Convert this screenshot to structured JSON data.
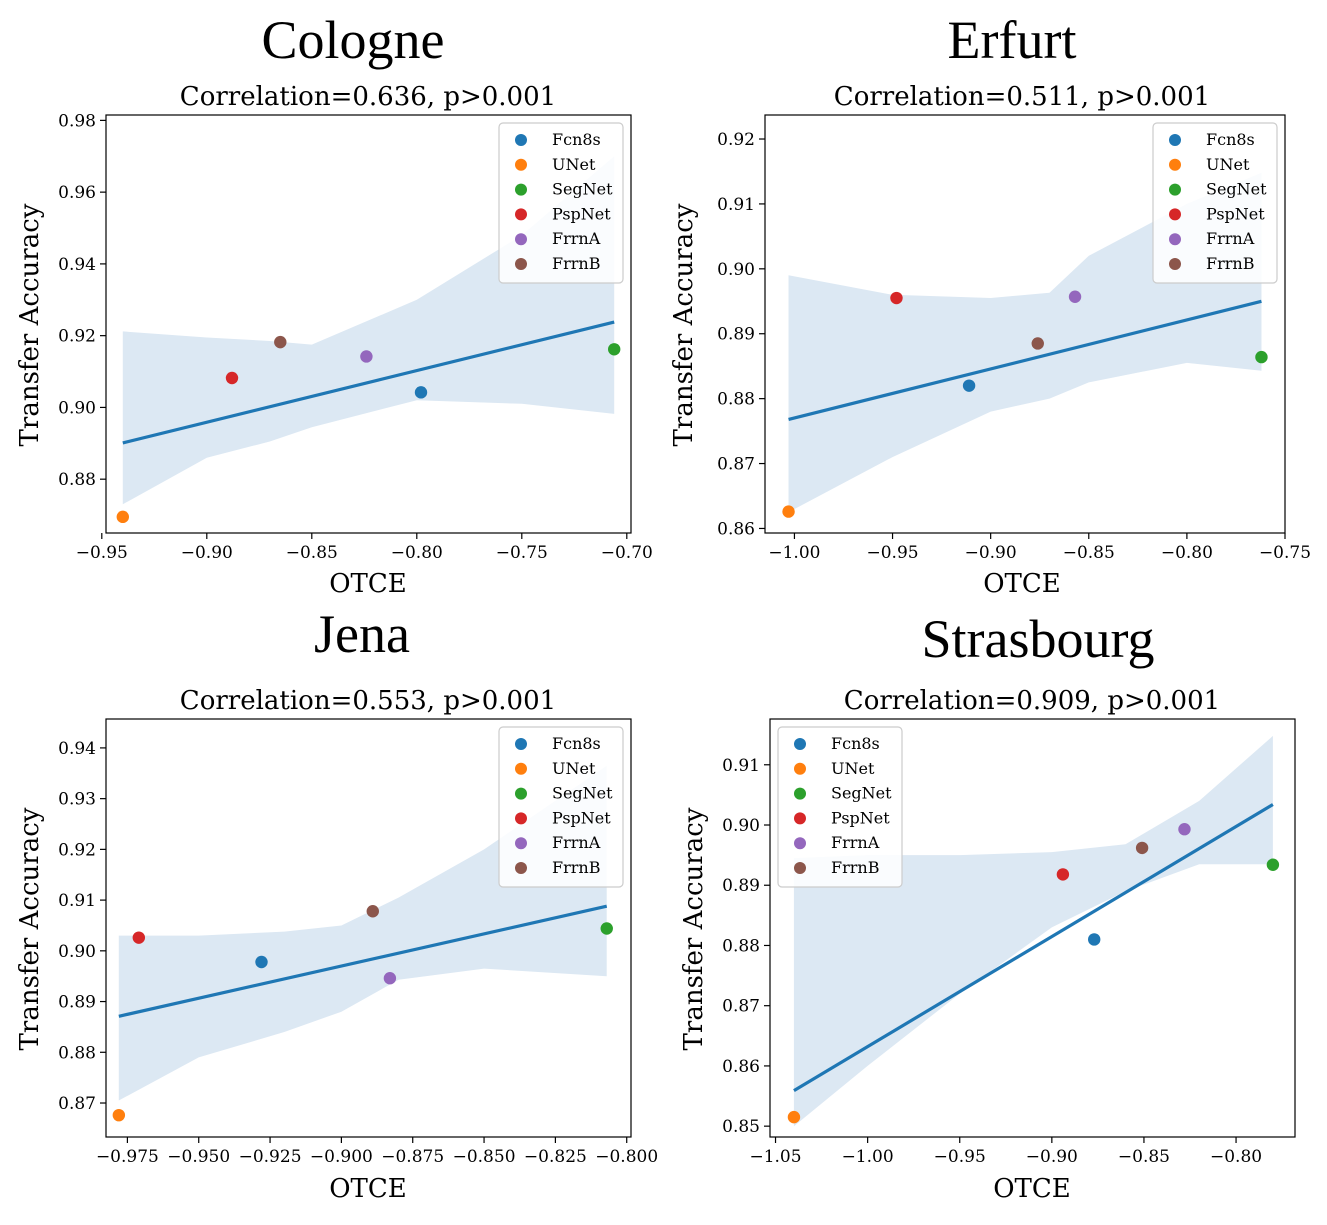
{
  "colors": {
    "Fcn8s": "#1f77b4",
    "UNet": "#ff7f0e",
    "SegNet": "#2ca02c",
    "PspNet": "#d62728",
    "FrrnA": "#9467bd",
    "FrrnB": "#8c564b",
    "fit_line": "#1f77b4",
    "ci_band": "#dce8f3"
  },
  "chart_data": [
    {
      "type": "scatter",
      "city": "Cologne",
      "title": "Correlation=0.636, p>0.001",
      "xlabel": "OTCE",
      "ylabel": "Transfer Accuracy",
      "xlim": [
        -0.948,
        -0.698
      ],
      "ylim": [
        0.865,
        0.9815
      ],
      "xticks": [
        -0.95,
        -0.9,
        -0.85,
        -0.8,
        -0.75,
        -0.7
      ],
      "xtick_labels": [
        "−0.95",
        "−0.90",
        "−0.85",
        "−0.80",
        "−0.75",
        "−0.70"
      ],
      "yticks": [
        0.88,
        0.9,
        0.92,
        0.94,
        0.96,
        0.98
      ],
      "ytick_labels": [
        "0.88",
        "0.90",
        "0.92",
        "0.94",
        "0.96",
        "0.98"
      ],
      "legend": "top-right",
      "points": [
        {
          "name": "Fcn8s",
          "x": -0.798,
          "y": 0.9042
        },
        {
          "name": "UNet",
          "x": -0.94,
          "y": 0.8695
        },
        {
          "name": "SegNet",
          "x": -0.706,
          "y": 0.9162
        },
        {
          "name": "PspNet",
          "x": -0.888,
          "y": 0.9082
        },
        {
          "name": "FrrnA",
          "x": -0.824,
          "y": 0.9142
        },
        {
          "name": "FrrnB",
          "x": -0.865,
          "y": 0.9182
        }
      ],
      "fit_line": {
        "x": [
          -0.94,
          -0.706
        ],
        "y": [
          0.8901,
          0.9238
        ]
      },
      "ci_band": {
        "x": [
          -0.94,
          -0.9,
          -0.87,
          -0.85,
          -0.8,
          -0.75,
          -0.706
        ],
        "upper": [
          0.9212,
          0.9195,
          0.9185,
          0.9175,
          0.93,
          0.948,
          0.97
        ],
        "lower": [
          0.873,
          0.886,
          0.8905,
          0.8945,
          0.902,
          0.901,
          0.8982
        ]
      }
    },
    {
      "type": "scatter",
      "city": "Erfurt",
      "title": "Correlation=0.511, p>0.001",
      "xlabel": "OTCE",
      "ylabel": "Transfer Accuracy",
      "xlim": [
        -1.015,
        -0.75
      ],
      "ylim": [
        0.8593,
        0.9237
      ],
      "xticks": [
        -1.0,
        -0.95,
        -0.9,
        -0.85,
        -0.8,
        -0.75
      ],
      "xtick_labels": [
        "−1.00",
        "−0.95",
        "−0.90",
        "−0.85",
        "−0.80",
        "−0.75"
      ],
      "yticks": [
        0.86,
        0.87,
        0.88,
        0.89,
        0.9,
        0.91,
        0.92
      ],
      "ytick_labels": [
        "0.86",
        "0.87",
        "0.88",
        "0.89",
        "0.90",
        "0.91",
        "0.92"
      ],
      "legend": "top-right",
      "points": [
        {
          "name": "Fcn8s",
          "x": -0.911,
          "y": 0.882
        },
        {
          "name": "UNet",
          "x": -1.003,
          "y": 0.8626
        },
        {
          "name": "SegNet",
          "x": -0.762,
          "y": 0.8864
        },
        {
          "name": "PspNet",
          "x": -0.948,
          "y": 0.8955
        },
        {
          "name": "FrrnA",
          "x": -0.857,
          "y": 0.8957
        },
        {
          "name": "FrrnB",
          "x": -0.876,
          "y": 0.8885
        }
      ],
      "fit_line": {
        "x": [
          -1.003,
          -0.762
        ],
        "y": [
          0.8768,
          0.895
        ]
      },
      "ci_band": {
        "x": [
          -1.003,
          -0.95,
          -0.9,
          -0.87,
          -0.85,
          -0.8,
          -0.762
        ],
        "upper": [
          0.899,
          0.896,
          0.8955,
          0.8963,
          0.902,
          0.91,
          0.9148
        ],
        "lower": [
          0.8625,
          0.871,
          0.878,
          0.88,
          0.8825,
          0.8855,
          0.8843
        ]
      }
    },
    {
      "type": "scatter",
      "city": "Jena",
      "title": "Correlation=0.553, p>0.001",
      "xlabel": "OTCE",
      "ylabel": "Transfer Accuracy",
      "xlim": [
        -0.9825,
        -0.7985
      ],
      "ylim": [
        0.8633,
        0.9457
      ],
      "xticks": [
        -0.975,
        -0.95,
        -0.925,
        -0.9,
        -0.875,
        -0.85,
        -0.825,
        -0.8
      ],
      "xtick_labels": [
        "−0.975",
        "−0.950",
        "−0.925",
        "−0.900",
        "−0.875",
        "−0.850",
        "−0.825",
        "−0.800"
      ],
      "yticks": [
        0.87,
        0.88,
        0.89,
        0.9,
        0.91,
        0.92,
        0.93,
        0.94
      ],
      "ytick_labels": [
        "0.87",
        "0.88",
        "0.89",
        "0.90",
        "0.91",
        "0.92",
        "0.93",
        "0.94"
      ],
      "legend": "top-right",
      "points": [
        {
          "name": "Fcn8s",
          "x": -0.928,
          "y": 0.8978
        },
        {
          "name": "UNet",
          "x": -0.978,
          "y": 0.8676
        },
        {
          "name": "SegNet",
          "x": -0.807,
          "y": 0.9044
        },
        {
          "name": "PspNet",
          "x": -0.971,
          "y": 0.9026
        },
        {
          "name": "FrrnA",
          "x": -0.883,
          "y": 0.8946
        },
        {
          "name": "FrrnB",
          "x": -0.889,
          "y": 0.9078
        }
      ],
      "fit_line": {
        "x": [
          -0.978,
          -0.807
        ],
        "y": [
          0.8871,
          0.9088
        ]
      },
      "ci_band": {
        "x": [
          -0.978,
          -0.95,
          -0.92,
          -0.9,
          -0.88,
          -0.85,
          -0.807
        ],
        "upper": [
          0.903,
          0.903,
          0.9038,
          0.905,
          0.9105,
          0.92,
          0.9365
        ],
        "lower": [
          0.8705,
          0.879,
          0.884,
          0.888,
          0.8943,
          0.8965,
          0.895
        ]
      }
    },
    {
      "type": "scatter",
      "city": "Strasbourg",
      "title": "Correlation=0.909, p>0.001",
      "xlabel": "OTCE",
      "ylabel": "Transfer Accuracy",
      "xlim": [
        -1.053,
        -0.768
      ],
      "ylim": [
        0.8482,
        0.9176
      ],
      "xticks": [
        -1.05,
        -1.0,
        -0.95,
        -0.9,
        -0.85,
        -0.8
      ],
      "xtick_labels": [
        "−1.05",
        "−1.00",
        "−0.95",
        "−0.90",
        "−0.85",
        "−0.80"
      ],
      "yticks": [
        0.85,
        0.86,
        0.87,
        0.88,
        0.89,
        0.9,
        0.91
      ],
      "ytick_labels": [
        "0.85",
        "0.86",
        "0.87",
        "0.88",
        "0.89",
        "0.90",
        "0.91"
      ],
      "legend": "top-left",
      "points": [
        {
          "name": "Fcn8s",
          "x": -0.877,
          "y": 0.881
        },
        {
          "name": "UNet",
          "x": -1.04,
          "y": 0.8515
        },
        {
          "name": "SegNet",
          "x": -0.78,
          "y": 0.8934
        },
        {
          "name": "PspNet",
          "x": -0.894,
          "y": 0.8918
        },
        {
          "name": "FrrnA",
          "x": -0.828,
          "y": 0.8993
        },
        {
          "name": "FrrnB",
          "x": -0.851,
          "y": 0.8962
        }
      ],
      "fit_line": {
        "x": [
          -1.04,
          -0.78
        ],
        "y": [
          0.8559,
          0.9034
        ]
      },
      "ci_band": {
        "x": [
          -1.04,
          -1.0,
          -0.95,
          -0.9,
          -0.86,
          -0.82,
          -0.78
        ],
        "upper": [
          0.8945,
          0.895,
          0.895,
          0.8955,
          0.8968,
          0.904,
          0.9148
        ],
        "lower": [
          0.85,
          0.86,
          0.872,
          0.883,
          0.889,
          0.8935,
          0.8935
        ]
      }
    }
  ],
  "legend_items": [
    "Fcn8s",
    "UNet",
    "SegNet",
    "PspNet",
    "FrrnA",
    "FrrnB"
  ]
}
